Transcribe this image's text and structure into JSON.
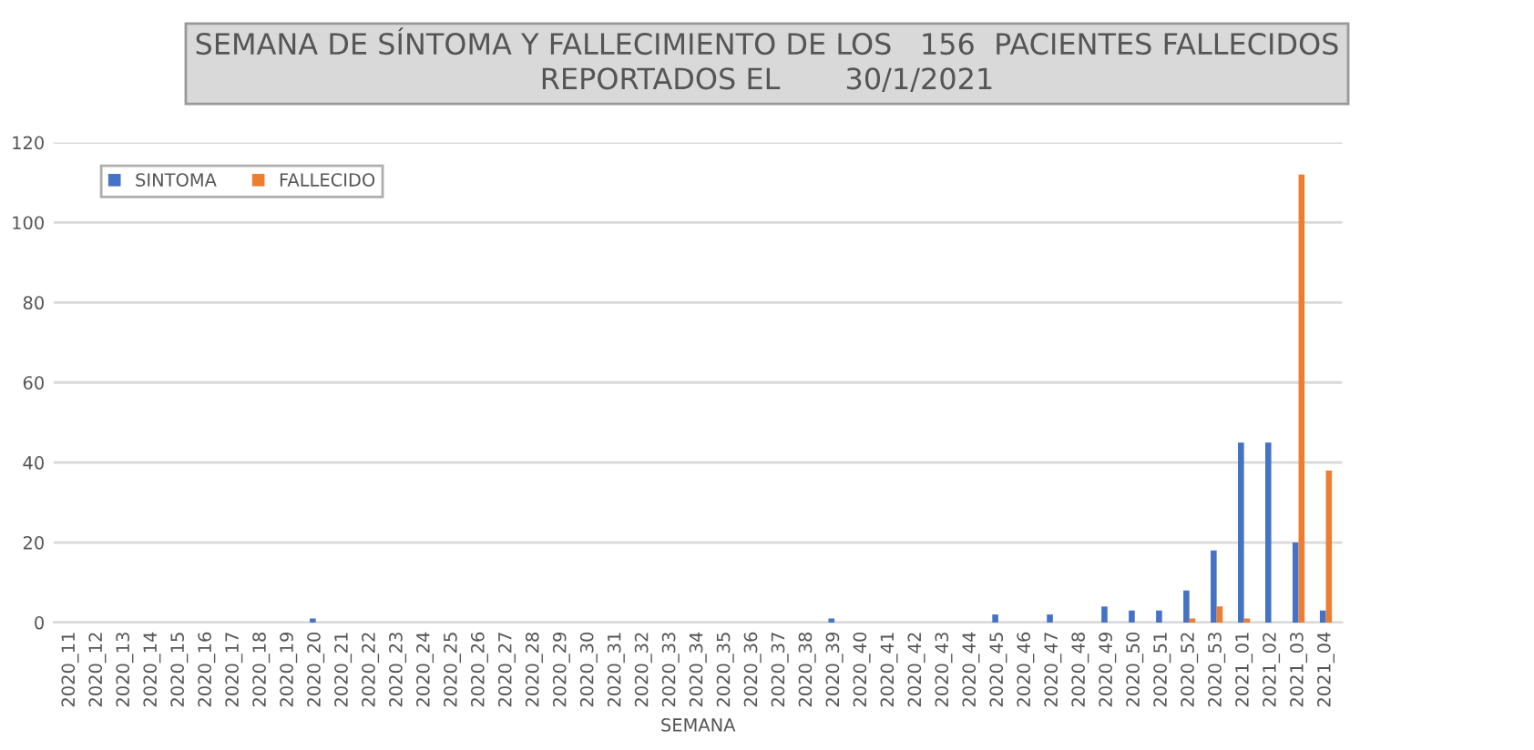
{
  "chart_data": {
    "type": "bar",
    "title": "SEMANA DE SÍNTOMA Y FALLECIMIENTO DE LOS   156  PACIENTES FALLECIDOS\nREPORTADOS EL       30/1/2021",
    "xlabel": "SEMANA",
    "categories": [
      "2020_11",
      "2020_12",
      "2020_13",
      "2020_14",
      "2020_15",
      "2020_16",
      "2020_17",
      "2020_18",
      "2020_19",
      "2020_20",
      "2020_21",
      "2020_22",
      "2020_23",
      "2020_24",
      "2020_25",
      "2020_26",
      "2020_27",
      "2020_28",
      "2020_29",
      "2020_30",
      "2020_31",
      "2020_32",
      "2020_33",
      "2020_34",
      "2020_35",
      "2020_36",
      "2020_37",
      "2020_38",
      "2020_39",
      "2020_40",
      "2020_41",
      "2020_42",
      "2020_43",
      "2020_44",
      "2020_45",
      "2020_46",
      "2020_47",
      "2020_48",
      "2020_49",
      "2020_50",
      "2020_51",
      "2020_52",
      "2020_53",
      "2021_01",
      "2021_02",
      "2021_03",
      "2021_04"
    ],
    "series": [
      {
        "name": "SINTOMA",
        "color": "#4472c4",
        "values": [
          0,
          0,
          0,
          0,
          0,
          0,
          0,
          0,
          0,
          1,
          0,
          0,
          0,
          0,
          0,
          0,
          0,
          0,
          0,
          0,
          0,
          0,
          0,
          0,
          0,
          0,
          0,
          0,
          1,
          0,
          0,
          0,
          0,
          0,
          2,
          0,
          2,
          0,
          4,
          3,
          3,
          8,
          18,
          45,
          45,
          20,
          3
        ]
      },
      {
        "name": "FALLECIDO",
        "color": "#ed7d31",
        "values": [
          0,
          0,
          0,
          0,
          0,
          0,
          0,
          0,
          0,
          0,
          0,
          0,
          0,
          0,
          0,
          0,
          0,
          0,
          0,
          0,
          0,
          0,
          0,
          0,
          0,
          0,
          0,
          0,
          0,
          0,
          0,
          0,
          0,
          0,
          0,
          0,
          0,
          0,
          0,
          0,
          0,
          1,
          4,
          1,
          0,
          112,
          38
        ]
      }
    ],
    "ylim": [
      0,
      120
    ],
    "yticks": [
      0,
      20,
      40,
      60,
      80,
      100,
      120
    ],
    "grid": "y",
    "legend": "top left"
  }
}
